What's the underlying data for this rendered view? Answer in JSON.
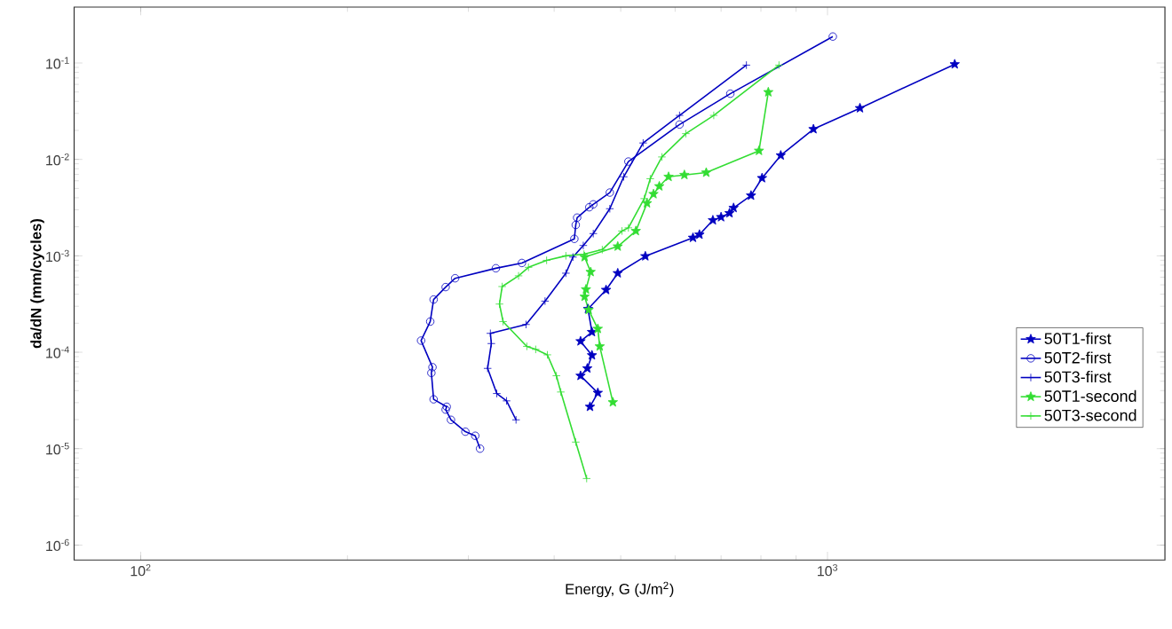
{
  "chart_data": {
    "type": "line",
    "xlabel": "Energy, G (J/m$^{2}$)",
    "ylabel": "da/dN (mm/cycles)",
    "log": "xy",
    "grid": false,
    "legend": "right",
    "line_style": "solid",
    "xlim": [
      80,
      3100
    ],
    "ylim": [
      7e-07,
      0.38
    ],
    "xticks": [
      {
        "value": 100,
        "label": "10$^{2}$"
      },
      {
        "value": 1000,
        "label": "10$^{3}$"
      }
    ],
    "yticks": [
      {
        "value": 1e-06,
        "label": "10$^{-6}$"
      },
      {
        "value": 1e-05,
        "label": "10$^{-5}$"
      },
      {
        "value": 0.0001,
        "label": "10$^{-4}$"
      },
      {
        "value": 0.001,
        "label": "10$^{-3}$"
      },
      {
        "value": 0.01,
        "label": "10$^{-2}$"
      },
      {
        "value": 0.1,
        "label": "10$^{-1}$"
      }
    ],
    "series": [
      {
        "name": "50T1-first",
        "color": "#0000c0",
        "marker": "star",
        "x": [
          451,
          463,
          437,
          447,
          454,
          437,
          454,
          448,
          476,
          495,
          543,
          637,
          651,
          681,
          700,
          720,
          730,
          774,
          803,
          855,
          954,
          1115,
          1532
        ],
        "values": [
          2.72e-05,
          3.79e-05,
          5.7e-05,
          6.8e-05,
          9.3e-05,
          0.00013,
          0.000162,
          0.000281,
          0.000443,
          0.00066,
          0.00099,
          0.00154,
          0.00166,
          0.00234,
          0.00252,
          0.00277,
          0.00314,
          0.00422,
          0.0064,
          0.011,
          0.0206,
          0.034,
          0.097
        ]
      },
      {
        "name": "50T2-first",
        "color": "#0000c0",
        "marker": "circle",
        "x": [
          312,
          307,
          297,
          283,
          278,
          279,
          267,
          265,
          266,
          256,
          264,
          267,
          278,
          287,
          329,
          359,
          428,
          430,
          432,
          450,
          456,
          482,
          513,
          609,
          722,
          1018
        ],
        "values": [
          1e-05,
          1.36e-05,
          1.5e-05,
          1.99e-05,
          2.54e-05,
          2.72e-05,
          3.25e-05,
          6.1e-05,
          7e-05,
          0.000132,
          0.000208,
          0.000352,
          0.000474,
          0.000585,
          0.000743,
          0.000843,
          0.0015,
          0.00209,
          0.00249,
          0.00319,
          0.00342,
          0.00453,
          0.0095,
          0.023,
          0.048,
          0.188
        ]
      },
      {
        "name": "50T3-first",
        "color": "#0000c0",
        "marker": "cross",
        "x": [
          352,
          341,
          330,
          320,
          324,
          323,
          364,
          388,
          416,
          426,
          441,
          456,
          482,
          505,
          539,
          609,
          762
        ],
        "values": [
          1.99e-05,
          3.13e-05,
          3.73e-05,
          6.8e-05,
          0.000123,
          0.000157,
          0.000194,
          0.000339,
          0.00066,
          0.00097,
          0.00128,
          0.0017,
          0.00308,
          0.0066,
          0.0148,
          0.0286,
          0.095
        ]
      },
      {
        "name": "50T1-second",
        "color": "#33dd33",
        "marker": "star",
        "x": [
          487,
          466,
          463,
          449,
          443,
          445,
          452,
          443,
          495,
          526,
          546,
          558,
          569,
          587,
          619,
          666,
          795,
          820
        ],
        "values": [
          3.03e-05,
          0.000115,
          0.000175,
          0.000275,
          0.000377,
          0.000449,
          0.00068,
          0.00097,
          0.00125,
          0.00181,
          0.00351,
          0.00437,
          0.00526,
          0.0066,
          0.0069,
          0.0073,
          0.0123,
          0.0498
        ]
      },
      {
        "name": "50T3-second",
        "color": "#33dd33",
        "marker": "cross",
        "x": [
          446,
          430,
          409,
          403,
          391,
          376,
          365,
          337,
          333,
          336,
          355,
          367,
          390,
          416,
          442,
          470,
          502,
          513,
          541,
          552,
          574,
          622,
          683,
          850
        ],
        "values": [
          4.9e-06,
          1.17e-05,
          3.87e-05,
          5.7e-05,
          9.4e-05,
          0.000107,
          0.000115,
          0.000208,
          0.000316,
          0.00048,
          0.00062,
          0.00076,
          0.000898,
          0.001,
          0.00104,
          0.00116,
          0.00181,
          0.00195,
          0.00392,
          0.0063,
          0.0106,
          0.0185,
          0.0286,
          0.095
        ]
      }
    ]
  }
}
